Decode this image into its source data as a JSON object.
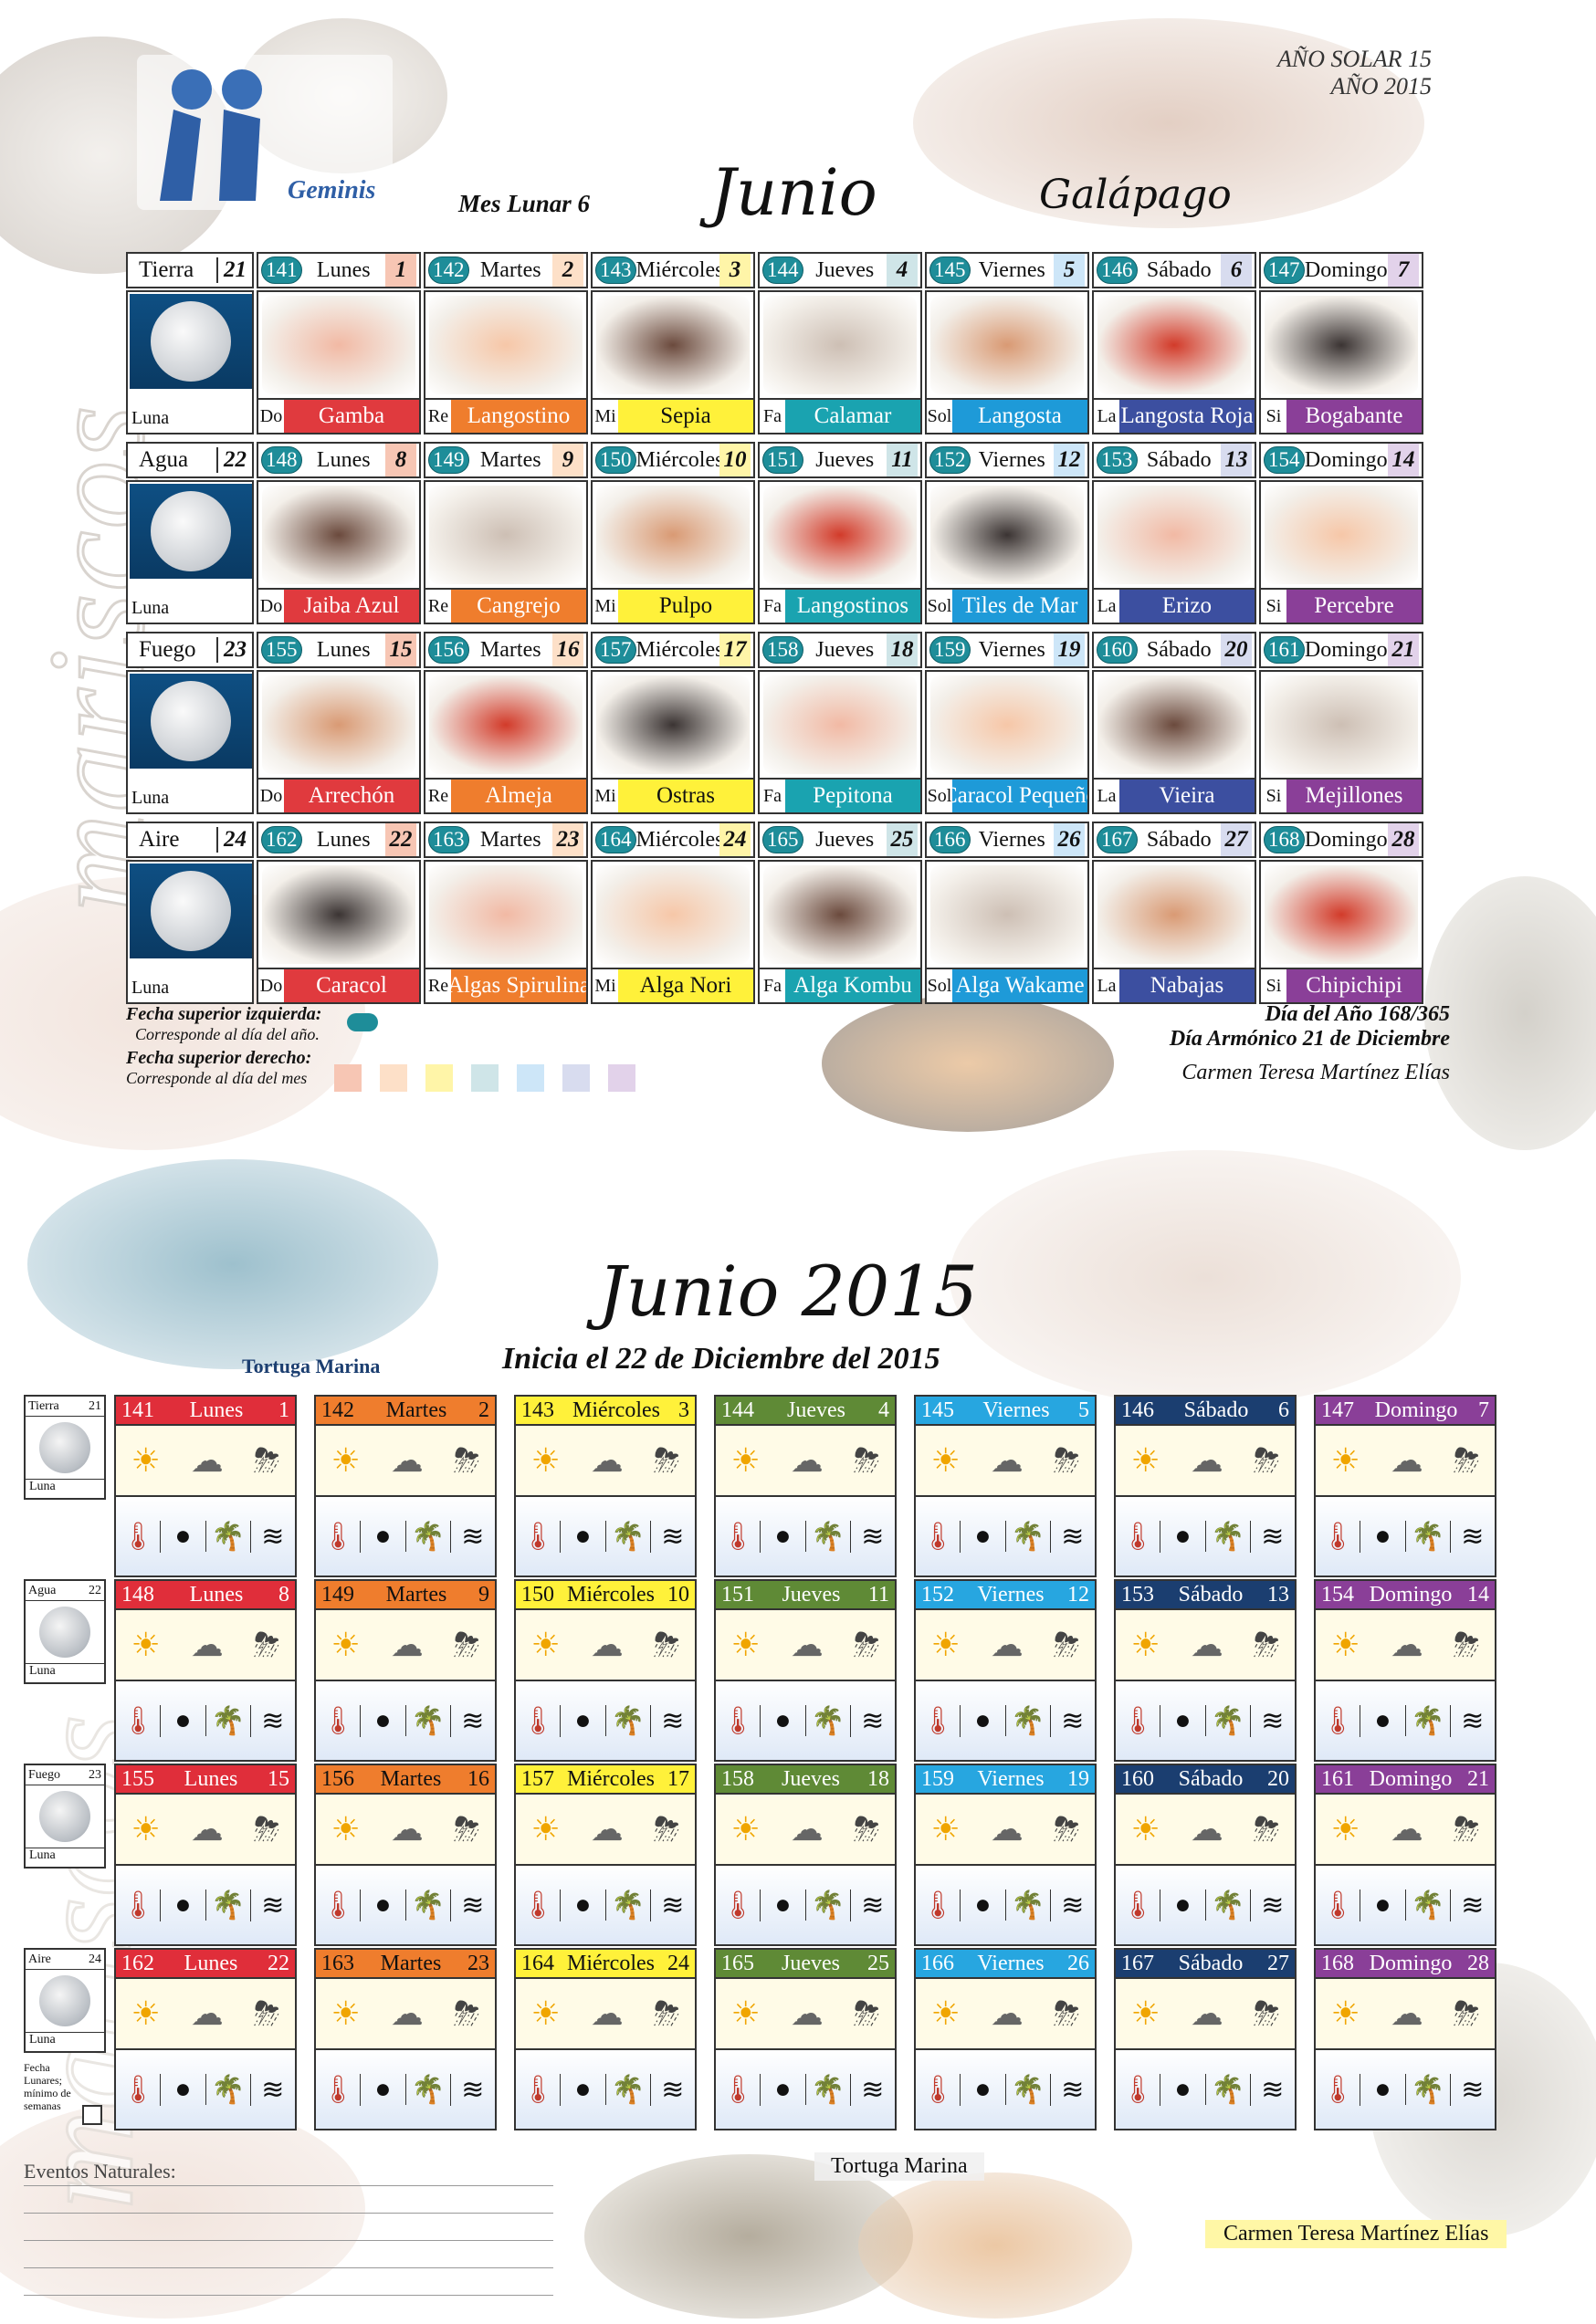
{
  "header": {
    "solar_year": "AÑO SOLAR 15",
    "year": "AÑO 2015",
    "sign": "Geminis",
    "lunar_month": "Mes Lunar 6",
    "month_title": "Junio",
    "animal": "Galápago",
    "side_word": "mariscos"
  },
  "weeks": [
    {
      "element": "Tierra",
      "element_num": "21",
      "moon_label": "Luna",
      "days": [
        {
          "doy": "141",
          "name": "Lunes",
          "num": "1",
          "color": "#f7c6b4",
          "abbr": "Do",
          "food": "Gamba",
          "food_color": "#e03a3e",
          "food_text": "#fff"
        },
        {
          "doy": "142",
          "name": "Martes",
          "num": "2",
          "color": "#fde0c8",
          "abbr": "Re",
          "food": "Langostino",
          "food_color": "#ef7d2d",
          "food_text": "#fff"
        },
        {
          "doy": "143",
          "name": "Miércoles",
          "num": "3",
          "color": "#fff5a8",
          "abbr": "Mi",
          "food": "Sepia",
          "food_color": "#fff13a",
          "food_text": "#111"
        },
        {
          "doy": "144",
          "name": "Jueves",
          "num": "4",
          "color": "#cfe5e8",
          "abbr": "Fa",
          "food": "Calamar",
          "food_color": "#1aa3b0",
          "food_text": "#fff"
        },
        {
          "doy": "145",
          "name": "Viernes",
          "num": "5",
          "color": "#cde6f8",
          "abbr": "Sol",
          "food": "Langosta",
          "food_color": "#1e9ad8",
          "food_text": "#fff"
        },
        {
          "doy": "146",
          "name": "Sábado",
          "num": "6",
          "color": "#d8dcef",
          "abbr": "La",
          "food": "Langosta Roja",
          "food_color": "#3c4fa0",
          "food_text": "#fff"
        },
        {
          "doy": "147",
          "name": "Domingo",
          "num": "7",
          "color": "#e2d2ea",
          "abbr": "Si",
          "food": "Bogabante",
          "food_color": "#8a3f98",
          "food_text": "#fff"
        }
      ]
    },
    {
      "element": "Agua",
      "element_num": "22",
      "moon_label": "Luna",
      "days": [
        {
          "doy": "148",
          "name": "Lunes",
          "num": "8",
          "color": "#f7c6b4",
          "abbr": "Do",
          "food": "Jaiba Azul",
          "food_color": "#e03a3e",
          "food_text": "#fff"
        },
        {
          "doy": "149",
          "name": "Martes",
          "num": "9",
          "color": "#fde0c8",
          "abbr": "Re",
          "food": "Cangrejo",
          "food_color": "#ef7d2d",
          "food_text": "#fff"
        },
        {
          "doy": "150",
          "name": "Miércoles",
          "num": "10",
          "color": "#fff5a8",
          "abbr": "Mi",
          "food": "Pulpo",
          "food_color": "#fff13a",
          "food_text": "#111"
        },
        {
          "doy": "151",
          "name": "Jueves",
          "num": "11",
          "color": "#cfe5e8",
          "abbr": "Fa",
          "food": "Langostinos",
          "food_color": "#1aa3b0",
          "food_text": "#fff"
        },
        {
          "doy": "152",
          "name": "Viernes",
          "num": "12",
          "color": "#cde6f8",
          "abbr": "Sol",
          "food": "Tiles de Mar",
          "food_color": "#1e9ad8",
          "food_text": "#fff"
        },
        {
          "doy": "153",
          "name": "Sábado",
          "num": "13",
          "color": "#d8dcef",
          "abbr": "La",
          "food": "Erizo",
          "food_color": "#3c4fa0",
          "food_text": "#fff"
        },
        {
          "doy": "154",
          "name": "Domingo",
          "num": "14",
          "color": "#e2d2ea",
          "abbr": "Si",
          "food": "Percebre",
          "food_color": "#8a3f98",
          "food_text": "#fff"
        }
      ]
    },
    {
      "element": "Fuego",
      "element_num": "23",
      "moon_label": "Luna",
      "days": [
        {
          "doy": "155",
          "name": "Lunes",
          "num": "15",
          "color": "#f7c6b4",
          "abbr": "Do",
          "food": "Arrechón",
          "food_color": "#e03a3e",
          "food_text": "#fff"
        },
        {
          "doy": "156",
          "name": "Martes",
          "num": "16",
          "color": "#fde0c8",
          "abbr": "Re",
          "food": "Almeja",
          "food_color": "#ef7d2d",
          "food_text": "#fff"
        },
        {
          "doy": "157",
          "name": "Miércoles",
          "num": "17",
          "color": "#fff5a8",
          "abbr": "Mi",
          "food": "Ostras",
          "food_color": "#fff13a",
          "food_text": "#111"
        },
        {
          "doy": "158",
          "name": "Jueves",
          "num": "18",
          "color": "#cfe5e8",
          "abbr": "Fa",
          "food": "Pepitona",
          "food_color": "#1aa3b0",
          "food_text": "#fff"
        },
        {
          "doy": "159",
          "name": "Viernes",
          "num": "19",
          "color": "#cde6f8",
          "abbr": "Sol",
          "food": "Caracol Pequeño",
          "food_color": "#1e9ad8",
          "food_text": "#fff"
        },
        {
          "doy": "160",
          "name": "Sábado",
          "num": "20",
          "color": "#d8dcef",
          "abbr": "La",
          "food": "Vieira",
          "food_color": "#3c4fa0",
          "food_text": "#fff"
        },
        {
          "doy": "161",
          "name": "Domingo",
          "num": "21",
          "color": "#e2d2ea",
          "abbr": "Si",
          "food": "Mejillones",
          "food_color": "#8a3f98",
          "food_text": "#fff"
        }
      ]
    },
    {
      "element": "Aire",
      "element_num": "24",
      "moon_label": "Luna",
      "days": [
        {
          "doy": "162",
          "name": "Lunes",
          "num": "22",
          "color": "#f7c6b4",
          "abbr": "Do",
          "food": "Caracol",
          "food_color": "#e03a3e",
          "food_text": "#fff"
        },
        {
          "doy": "163",
          "name": "Martes",
          "num": "23",
          "color": "#fde0c8",
          "abbr": "Re",
          "food": "Algas Spirulina",
          "food_color": "#ef7d2d",
          "food_text": "#fff"
        },
        {
          "doy": "164",
          "name": "Miércoles",
          "num": "24",
          "color": "#fff5a8",
          "abbr": "Mi",
          "food": "Alga Nori",
          "food_color": "#fff13a",
          "food_text": "#111"
        },
        {
          "doy": "165",
          "name": "Jueves",
          "num": "25",
          "color": "#cfe5e8",
          "abbr": "Fa",
          "food": "Alga Kombu",
          "food_color": "#1aa3b0",
          "food_text": "#fff"
        },
        {
          "doy": "166",
          "name": "Viernes",
          "num": "26",
          "color": "#cde6f8",
          "abbr": "Sol",
          "food": "Alga Wakame",
          "food_color": "#1e9ad8",
          "food_text": "#fff"
        },
        {
          "doy": "167",
          "name": "Sábado",
          "num": "27",
          "color": "#d8dcef",
          "abbr": "La",
          "food": "Nabajas",
          "food_color": "#3c4fa0",
          "food_text": "#fff"
        },
        {
          "doy": "168",
          "name": "Domingo",
          "num": "28",
          "color": "#e2d2ea",
          "abbr": "Si",
          "food": "Chipichipi",
          "food_color": "#8a3f98",
          "food_text": "#fff"
        }
      ]
    }
  ],
  "legend": {
    "top_left_title": "Fecha superior izquierda:",
    "top_left_desc": "Corresponde al día del año.",
    "top_right_title": "Fecha superior derecho:",
    "top_right_desc": "Corresponde al día del mes",
    "swatches": [
      "#f7c6b4",
      "#fde0c8",
      "#fff5a8",
      "#cfe5e8",
      "#cde6f8",
      "#d8dcef",
      "#e2d2ea"
    ]
  },
  "footer_top": {
    "day_of_year": "Día del Año 168/365",
    "harmonic_day": "Día Armónico 21 de Diciembre",
    "author": "Carmen Teresa Martínez Elías"
  },
  "bottom": {
    "title": "Junio 2015",
    "subtitle": "Inicia el 22 de Diciembre del 2015",
    "animal_label": "Tortuga Marina",
    "side_word": "mariscos",
    "header_colors": [
      "#e02e3a",
      "#ef7d2d",
      "#fff13a",
      "#5f8a36",
      "#27a6e0",
      "#1b3e70",
      "#8a3f98"
    ],
    "header_text": [
      "#fff",
      "#111",
      "#111",
      "#fff",
      "#fff",
      "#fff",
      "#fff"
    ],
    "weeks": [
      {
        "element": "Tierra",
        "num": "21",
        "moon_label": "Luna",
        "days": [
          {
            "doy": "141",
            "name": "Lunes",
            "num": "1"
          },
          {
            "doy": "142",
            "name": "Martes",
            "num": "2"
          },
          {
            "doy": "143",
            "name": "Miércoles",
            "num": "3"
          },
          {
            "doy": "144",
            "name": "Jueves",
            "num": "4"
          },
          {
            "doy": "145",
            "name": "Viernes",
            "num": "5"
          },
          {
            "doy": "146",
            "name": "Sábado",
            "num": "6"
          },
          {
            "doy": "147",
            "name": "Domingo",
            "num": "7"
          }
        ]
      },
      {
        "element": "Agua",
        "num": "22",
        "moon_label": "Luna",
        "days": [
          {
            "doy": "148",
            "name": "Lunes",
            "num": "8"
          },
          {
            "doy": "149",
            "name": "Martes",
            "num": "9"
          },
          {
            "doy": "150",
            "name": "Miércoles",
            "num": "10"
          },
          {
            "doy": "151",
            "name": "Jueves",
            "num": "11"
          },
          {
            "doy": "152",
            "name": "Viernes",
            "num": "12"
          },
          {
            "doy": "153",
            "name": "Sábado",
            "num": "13"
          },
          {
            "doy": "154",
            "name": "Domingo",
            "num": "14"
          }
        ]
      },
      {
        "element": "Fuego",
        "num": "23",
        "moon_label": "Luna",
        "days": [
          {
            "doy": "155",
            "name": "Lunes",
            "num": "15"
          },
          {
            "doy": "156",
            "name": "Martes",
            "num": "16"
          },
          {
            "doy": "157",
            "name": "Miércoles",
            "num": "17"
          },
          {
            "doy": "158",
            "name": "Jueves",
            "num": "18"
          },
          {
            "doy": "159",
            "name": "Viernes",
            "num": "19"
          },
          {
            "doy": "160",
            "name": "Sábado",
            "num": "20"
          },
          {
            "doy": "161",
            "name": "Domingo",
            "num": "21"
          }
        ]
      },
      {
        "element": "Aire",
        "num": "24",
        "moon_label": "Luna",
        "days": [
          {
            "doy": "162",
            "name": "Lunes",
            "num": "22"
          },
          {
            "doy": "163",
            "name": "Martes",
            "num": "23"
          },
          {
            "doy": "164",
            "name": "Miércoles",
            "num": "24"
          },
          {
            "doy": "165",
            "name": "Jueves",
            "num": "25"
          },
          {
            "doy": "166",
            "name": "Viernes",
            "num": "26"
          },
          {
            "doy": "167",
            "name": "Sábado",
            "num": "27"
          },
          {
            "doy": "168",
            "name": "Domingo",
            "num": "28"
          }
        ]
      }
    ],
    "lunar_note": "Fecha Lunares; mínimo de semanas",
    "events_label": "Eventos Naturales:",
    "bottom_animal": "Tortuga Marina",
    "author": "Carmen Teresa Martínez Elías"
  }
}
